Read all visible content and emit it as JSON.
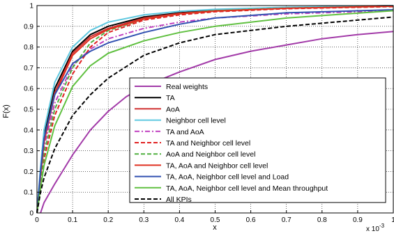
{
  "chart_data": {
    "type": "line",
    "xlabel": "x",
    "ylabel": "F(x)",
    "x_multiplier_label": "x 10",
    "x_multiplier_exp": "-3",
    "xlim": [
      0,
      1
    ],
    "ylim": [
      0,
      1
    ],
    "x_ticks": [
      "0",
      "0.1",
      "0.2",
      "0.3",
      "0.4",
      "0.5",
      "0.6",
      "0.7",
      "0.8",
      "0.9",
      "1"
    ],
    "y_ticks": [
      "0",
      "0.1",
      "0.2",
      "0.3",
      "0.4",
      "0.5",
      "0.6",
      "0.7",
      "0.8",
      "0.9",
      "1"
    ],
    "grid": true,
    "legend_position": "lower-right",
    "series": [
      {
        "name": "Real weights",
        "color": "#a23aa8",
        "dash": "solid",
        "x": [
          0.01,
          0.02,
          0.05,
          0.1,
          0.15,
          0.2,
          0.25,
          0.3,
          0.4,
          0.5,
          0.6,
          0.7,
          0.8,
          0.9,
          1.0
        ],
        "y": [
          0.0,
          0.05,
          0.14,
          0.28,
          0.4,
          0.49,
          0.56,
          0.61,
          0.68,
          0.74,
          0.78,
          0.81,
          0.84,
          0.86,
          0.875
        ]
      },
      {
        "name": "TA",
        "color": "#000000",
        "dash": "solid",
        "x": [
          0.0,
          0.01,
          0.02,
          0.05,
          0.1,
          0.15,
          0.2,
          0.3,
          0.4,
          0.5,
          0.7,
          1.0
        ],
        "y": [
          0.0,
          0.2,
          0.37,
          0.6,
          0.78,
          0.86,
          0.9,
          0.945,
          0.965,
          0.978,
          0.99,
          1.0
        ]
      },
      {
        "name": "AoA",
        "color": "#d03030",
        "dash": "solid",
        "x": [
          0.0,
          0.01,
          0.02,
          0.05,
          0.1,
          0.15,
          0.2,
          0.3,
          0.4,
          0.5,
          0.7,
          1.0
        ],
        "y": [
          0.0,
          0.19,
          0.35,
          0.58,
          0.77,
          0.85,
          0.89,
          0.94,
          0.962,
          0.975,
          0.988,
          0.998
        ]
      },
      {
        "name": "Neighbor cell level",
        "color": "#5ec8e0",
        "dash": "solid",
        "x": [
          0.0,
          0.01,
          0.02,
          0.05,
          0.1,
          0.15,
          0.2,
          0.3,
          0.4,
          0.5,
          0.7,
          1.0
        ],
        "y": [
          0.0,
          0.22,
          0.4,
          0.63,
          0.8,
          0.88,
          0.92,
          0.955,
          0.972,
          0.982,
          0.992,
          1.0
        ]
      },
      {
        "name": "TA and AoA",
        "color": "#c040c0",
        "dash": "dashdot",
        "x": [
          0.0,
          0.01,
          0.02,
          0.05,
          0.1,
          0.15,
          0.2,
          0.3,
          0.4,
          0.5,
          0.7,
          1.0
        ],
        "y": [
          0.0,
          0.17,
          0.32,
          0.53,
          0.71,
          0.79,
          0.84,
          0.89,
          0.92,
          0.94,
          0.96,
          0.975
        ]
      },
      {
        "name": "TA and Neighbor cell level",
        "color": "#e02020",
        "dash": "dashed",
        "x": [
          0.0,
          0.01,
          0.02,
          0.05,
          0.1,
          0.15,
          0.2,
          0.3,
          0.4,
          0.5,
          0.7,
          1.0
        ],
        "y": [
          0.0,
          0.13,
          0.26,
          0.47,
          0.67,
          0.8,
          0.87,
          0.93,
          0.955,
          0.97,
          0.985,
          0.995
        ]
      },
      {
        "name": "AoA and Neighbor cell level",
        "color": "#50b040",
        "dash": "dashed",
        "x": [
          0.0,
          0.01,
          0.02,
          0.05,
          0.1,
          0.15,
          0.2,
          0.3,
          0.4,
          0.5,
          0.7,
          1.0
        ],
        "y": [
          0.0,
          0.15,
          0.29,
          0.5,
          0.7,
          0.82,
          0.88,
          0.935,
          0.96,
          0.975,
          0.988,
          0.997
        ]
      },
      {
        "name": "TA, AoA and Neighbor cell level",
        "color": "#e03020",
        "dash": "solid",
        "x": [
          0.0,
          0.01,
          0.02,
          0.05,
          0.1,
          0.15,
          0.2,
          0.3,
          0.4,
          0.5,
          0.7,
          1.0
        ],
        "y": [
          0.0,
          0.18,
          0.34,
          0.57,
          0.76,
          0.84,
          0.885,
          0.935,
          0.96,
          0.973,
          0.987,
          0.997
        ]
      },
      {
        "name": "TA, AoA, Neighbor cell level and Load",
        "color": "#3050b0",
        "dash": "solid",
        "x": [
          0.0,
          0.01,
          0.02,
          0.05,
          0.1,
          0.15,
          0.2,
          0.3,
          0.4,
          0.5,
          0.7,
          1.0
        ],
        "y": [
          0.0,
          0.2,
          0.36,
          0.57,
          0.72,
          0.78,
          0.82,
          0.87,
          0.91,
          0.94,
          0.965,
          0.98
        ]
      },
      {
        "name": "TA, AoA, Neighbor cell level and Mean throughput",
        "color": "#60c040",
        "dash": "solid",
        "x": [
          0.0,
          0.01,
          0.02,
          0.05,
          0.1,
          0.15,
          0.2,
          0.3,
          0.4,
          0.5,
          0.7,
          1.0
        ],
        "y": [
          0.0,
          0.12,
          0.23,
          0.42,
          0.61,
          0.71,
          0.77,
          0.83,
          0.87,
          0.9,
          0.94,
          0.975
        ]
      },
      {
        "name": "All KPIs",
        "color": "#000000",
        "dash": "dashed",
        "x": [
          0.0,
          0.01,
          0.02,
          0.05,
          0.1,
          0.15,
          0.2,
          0.3,
          0.4,
          0.5,
          0.7,
          1.0
        ],
        "y": [
          0.0,
          0.1,
          0.17,
          0.31,
          0.47,
          0.57,
          0.65,
          0.76,
          0.82,
          0.86,
          0.9,
          0.945
        ]
      }
    ]
  }
}
